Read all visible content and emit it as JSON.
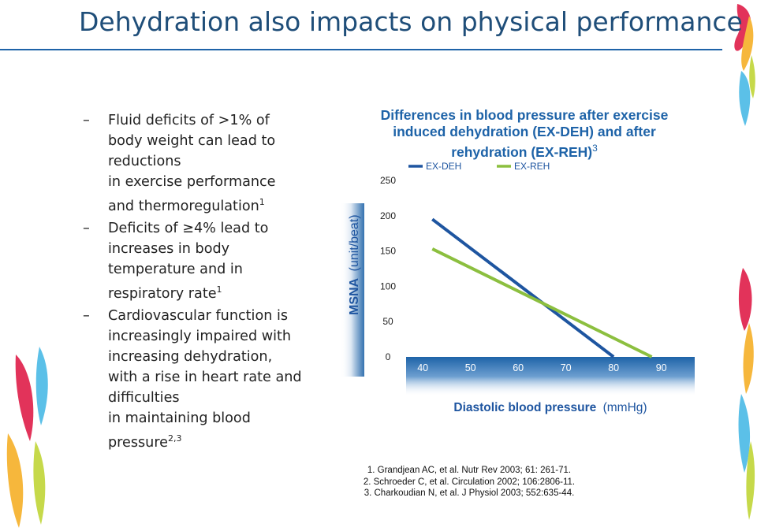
{
  "slide": {
    "title": "Dehydration also impacts on physical performance",
    "bullets": [
      {
        "lines": [
          "Fluid deficits of >1% of",
          "body weight can lead to",
          "reductions",
          "in exercise performance"
        ],
        "last": "and thermoregulation",
        "ref": "1"
      },
      {
        "lines": [
          "Deficits of ≥4% lead to",
          "increases in body",
          "temperature and in"
        ],
        "last": "respiratory rate",
        "ref": "1"
      },
      {
        "lines": [
          "Cardiovascular function is",
          "increasingly impaired with",
          "increasing dehydration,",
          "with a rise in heart rate and",
          "difficulties",
          "in maintaining blood"
        ],
        "last": "pressure",
        "ref": "2,3"
      }
    ],
    "bullet_dash": "–",
    "references": [
      "1. Grandjean AC, et al. Nutr Rev 2003; 61: 261-71.",
      "2. Schroeder C, et al. Circulation 2002; 106:2806-11.",
      "3. Charkoudian N, et al. J Physiol 2003; 552:635-44."
    ]
  },
  "chart_data": {
    "type": "line",
    "title": "Differences in blood pressure after exercise induced dehydration (EX-DEH) and after rehydration (EX-REH)",
    "title_lines": [
      "Differences in blood pressure after exercise",
      "induced dehydration (EX-DEH) and after",
      "rehydration (EX-REH)"
    ],
    "title_ref": "3",
    "xlabel": "Diastolic blood pressure",
    "xlabel_unit": "(mmHg)",
    "ylabel": "MSNA",
    "ylabel_unit": "(unit/beat)",
    "xlim": [
      36.5,
      97
    ],
    "ylim": [
      0,
      250
    ],
    "x_ticks": [
      40,
      50,
      60,
      70,
      80,
      90
    ],
    "y_ticks": [
      0,
      50,
      100,
      150,
      200,
      250
    ],
    "legend_position": "top",
    "series": [
      {
        "name": "EX-DEH",
        "color": "#1e55a0",
        "x": [
          42,
          80
        ],
        "y": [
          195,
          0
        ]
      },
      {
        "name": "EX-REH",
        "color": "#8cbf3f",
        "x": [
          42,
          88
        ],
        "y": [
          153,
          0
        ]
      }
    ]
  },
  "colors": {
    "title": "#1f4e79",
    "accent": "#1e63a8",
    "ex_deh": "#1e55a0",
    "ex_reh": "#8cbf3f"
  }
}
